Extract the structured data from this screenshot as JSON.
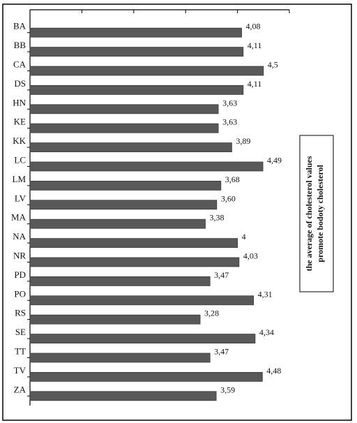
{
  "chart_data": {
    "type": "bar",
    "orientation": "horizontal",
    "categories": [
      "BA",
      "BB",
      "CA",
      "DS",
      "HN",
      "KE",
      "KK",
      "LC",
      "LM",
      "LV",
      "MA",
      "NA",
      "NR",
      "PD",
      "PO",
      "RS",
      "SE",
      "TT",
      "TV",
      "ZA"
    ],
    "values": [
      4.08,
      4.11,
      4.5,
      4.11,
      3.63,
      3.63,
      3.89,
      4.49,
      3.68,
      3.6,
      3.38,
      4,
      4.03,
      3.47,
      4.31,
      3.28,
      4.34,
      3.47,
      4.48,
      3.59
    ],
    "value_labels": [
      "4,08",
      "4,11",
      "4,5",
      "4,11",
      "3,63",
      "3,63",
      "3,89",
      "4,49",
      "3,68",
      "3,60",
      "3,38",
      "4",
      "4,03",
      "3,47",
      "4,31",
      "3,28",
      "4,34",
      "3,47",
      "4,48",
      "3,59"
    ],
    "xlim": [
      0,
      5
    ],
    "xticks": [
      "0",
      "1",
      "2",
      "3",
      "4",
      "5"
    ],
    "grid": false,
    "legend": {
      "position": "right",
      "lines": [
        "the average of cholesterol values",
        "promote bodoty cholesterol"
      ]
    },
    "colors": {
      "bar": "#595959",
      "bar_stroke": "#3a3a3a",
      "text": "#111111",
      "axis": "#000000",
      "frame": "#000000"
    },
    "rendering": "mirrored-upside-down"
  }
}
